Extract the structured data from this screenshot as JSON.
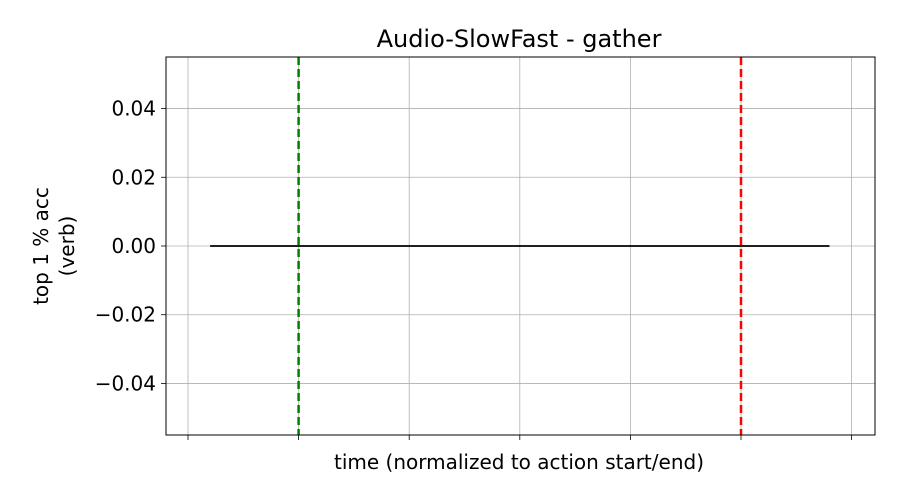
{
  "chart_data": {
    "type": "line",
    "title": "Audio-SlowFast - gather",
    "xlabel": "time (normalized to action start/end)",
    "ylabel_lines": [
      "top 1 % acc",
      "(verb)"
    ],
    "xlim": [
      -0.5,
      5.7
    ],
    "ylim": [
      -0.055,
      0.055
    ],
    "xticks": [
      0,
      1,
      2,
      3,
      4,
      5,
      6
    ],
    "yticks": [
      -0.04,
      -0.02,
      0.0,
      0.02,
      0.04
    ],
    "ytick_labels": [
      "−0.04",
      "−0.02",
      "0.00",
      "0.02",
      "0.04"
    ],
    "grid": true,
    "series": [
      {
        "color": "#000000",
        "x": [
          0.2,
          5.8
        ],
        "y": [
          0.0,
          0.0
        ]
      }
    ],
    "vlines": [
      {
        "x": 1.0,
        "color": "#008000",
        "style": "dashed"
      },
      {
        "x": 5.0,
        "color": "#ff0000",
        "style": "dashed"
      }
    ]
  }
}
